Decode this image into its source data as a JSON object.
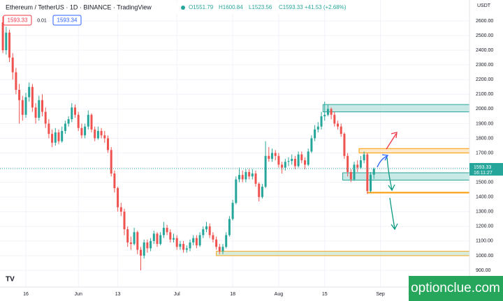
{
  "header": {
    "title": "Ethereum / TetherUS · 1D · BINANCE · TradingView",
    "ohlc": [
      "O1551.79",
      "H1600.84",
      "L1523.56",
      "C1593.33 +41.53 (+2.68%)"
    ],
    "sell_price": "1593.33",
    "spread": "0.01",
    "buy_price": "1593.34"
  },
  "watermark": "optionclue.com",
  "chart_data": {
    "type": "candlestick",
    "y_axis_label": "USDT",
    "up_color": "#26a69a",
    "down_color": "#ef5350",
    "grid": true,
    "price_label": "1593.33",
    "countdown": "16:11:27",
    "x": [
      -7,
      -6,
      -5,
      -4,
      -3,
      -2,
      -1,
      0,
      1,
      2,
      3,
      4,
      5,
      6,
      7,
      8,
      9,
      10,
      11,
      12,
      13,
      14,
      15,
      16,
      17,
      18,
      19,
      20,
      21,
      22,
      23,
      24,
      25,
      26,
      27,
      28,
      29,
      30,
      31,
      32,
      33,
      34,
      35,
      36,
      37,
      38,
      39,
      40,
      41,
      42,
      43,
      44,
      45,
      46,
      47,
      48,
      49,
      50,
      51,
      52,
      53,
      54,
      55,
      56,
      57,
      58,
      59,
      60,
      61,
      62,
      63,
      64,
      65,
      66,
      67,
      68,
      69,
      70,
      71,
      72,
      73,
      74,
      75,
      76,
      77,
      78,
      79,
      80,
      81,
      82,
      83,
      84,
      85,
      86,
      87,
      88,
      89,
      90,
      91,
      92,
      93,
      94,
      95,
      96,
      97,
      98,
      99,
      100,
      101,
      102,
      103,
      104,
      105,
      106
    ],
    "open": [
      2590,
      2400,
      2520,
      2350,
      2250,
      2130,
      2060,
      1960,
      2080,
      2150,
      2010,
      1940,
      2060,
      1980,
      1900,
      1830,
      1770,
      1840,
      1780,
      1850,
      1900,
      1930,
      2010,
      1960,
      1870,
      1820,
      1880,
      1960,
      1860,
      1800,
      1850,
      1820,
      1800,
      1720,
      1560,
      1460,
      1330,
      1300,
      1180,
      1090,
      1080,
      1160,
      1040,
      1000,
      1090,
      1050,
      1100,
      1150,
      1080,
      1140,
      1190,
      1160,
      1110,
      1120,
      1060,
      1080,
      1040,
      1050,
      1090,
      1120,
      1070,
      1140,
      1180,
      1200,
      1140,
      1110,
      1060,
      1030,
      1060,
      1140,
      1250,
      1360,
      1520,
      1550,
      1520,
      1570,
      1540,
      1560,
      1490,
      1400,
      1470,
      1680,
      1660,
      1700,
      1680,
      1620,
      1600,
      1640,
      1645,
      1660,
      1610,
      1690,
      1650,
      1620,
      1710,
      1800,
      1860,
      1880,
      1950,
      1960,
      2000,
      1960,
      1900,
      1880,
      1830,
      1680,
      1570,
      1520,
      1620,
      1600,
      1650,
      1690,
      1440,
      1551.79
    ],
    "high": [
      2630,
      2560,
      2540,
      2380,
      2280,
      2170,
      2090,
      2110,
      2180,
      2170,
      2040,
      2090,
      2100,
      2010,
      1930,
      1860,
      1870,
      1860,
      1880,
      1920,
      1950,
      2040,
      2030,
      1980,
      1900,
      1900,
      1990,
      1970,
      1880,
      1880,
      1870,
      1850,
      1820,
      1740,
      1580,
      1470,
      1360,
      1320,
      1200,
      1130,
      1190,
      1170,
      1060,
      1110,
      1110,
      1120,
      1170,
      1160,
      1160,
      1230,
      1210,
      1180,
      1150,
      1140,
      1100,
      1100,
      1070,
      1110,
      1140,
      1140,
      1160,
      1200,
      1230,
      1220,
      1160,
      1130,
      1080,
      1080,
      1160,
      1270,
      1380,
      1540,
      1600,
      1580,
      1590,
      1590,
      1590,
      1580,
      1500,
      1490,
      1780,
      1740,
      1730,
      1720,
      1700,
      1640,
      1660,
      1670,
      1690,
      1680,
      1710,
      1710,
      1670,
      1730,
      1820,
      1890,
      1910,
      1980,
      2050,
      2030,
      2010,
      1980,
      1920,
      1900,
      1840,
      1700,
      1590,
      1640,
      1650,
      1680,
      1710,
      1700,
      1570,
      1600.84
    ],
    "low": [
      2380,
      2370,
      2320,
      2200,
      2100,
      1900,
      1920,
      1940,
      2050,
      1980,
      1900,
      1920,
      1950,
      1870,
      1800,
      1740,
      1750,
      1760,
      1770,
      1830,
      1880,
      1910,
      1940,
      1850,
      1800,
      1800,
      1860,
      1840,
      1780,
      1790,
      1800,
      1770,
      1700,
      1540,
      1430,
      1300,
      1270,
      1140,
      1060,
      1040,
      1070,
      1010,
      900,
      980,
      1020,
      1030,
      1080,
      1060,
      1070,
      1120,
      1140,
      1090,
      1090,
      1040,
      1040,
      1020,
      1020,
      1030,
      1070,
      1050,
      1060,
      1120,
      1160,
      1120,
      1090,
      1040,
      1010,
      1010,
      1050,
      1130,
      1240,
      1350,
      1500,
      1500,
      1500,
      1520,
      1520,
      1470,
      1370,
      1390,
      1460,
      1640,
      1640,
      1650,
      1600,
      1560,
      1580,
      1610,
      1620,
      1590,
      1600,
      1630,
      1590,
      1610,
      1700,
      1780,
      1840,
      1860,
      1920,
      1950,
      1930,
      1880,
      1860,
      1810,
      1660,
      1540,
      1500,
      1510,
      1570,
      1590,
      1630,
      1420,
      1430,
      1523.56
    ],
    "close": [
      2400,
      2520,
      2350,
      2250,
      2130,
      2060,
      1960,
      2080,
      2150,
      2010,
      1940,
      2060,
      1980,
      1900,
      1830,
      1770,
      1840,
      1780,
      1850,
      1900,
      1930,
      2010,
      1960,
      1870,
      1820,
      1880,
      1960,
      1860,
      1800,
      1850,
      1820,
      1800,
      1720,
      1560,
      1460,
      1330,
      1300,
      1180,
      1090,
      1080,
      1160,
      1040,
      1000,
      1090,
      1050,
      1100,
      1150,
      1080,
      1140,
      1190,
      1160,
      1110,
      1120,
      1060,
      1080,
      1040,
      1050,
      1090,
      1120,
      1070,
      1140,
      1180,
      1200,
      1140,
      1110,
      1060,
      1030,
      1060,
      1140,
      1250,
      1360,
      1520,
      1550,
      1520,
      1570,
      1540,
      1560,
      1490,
      1400,
      1470,
      1680,
      1660,
      1700,
      1680,
      1620,
      1600,
      1640,
      1645,
      1660,
      1610,
      1690,
      1650,
      1620,
      1710,
      1800,
      1860,
      1880,
      1950,
      1960,
      2000,
      1960,
      1900,
      1880,
      1830,
      1680,
      1570,
      1520,
      1620,
      1600,
      1650,
      1690,
      1440,
      1551.79,
      1593.33
    ],
    "zones": [
      {
        "ylim": [
          1980,
          2030
        ],
        "x_start": 90.5,
        "fill": "#b2dfdb",
        "stroke": "#26a69a"
      },
      {
        "ylim": [
          1700,
          1730
        ],
        "x_start": 101.5,
        "fill": "#ffe0b2",
        "stroke": "#ff9800"
      },
      {
        "ylim": [
          1515,
          1565
        ],
        "x_start": 96.5,
        "fill": "#b2dfdb",
        "stroke": "#26a69a"
      },
      {
        "ylim": [
          1428,
          1432
        ],
        "x_start": 104,
        "fill": "#ffe0b2",
        "stroke": "#ff9800"
      },
      {
        "ylim": [
          1000,
          1030
        ],
        "x_start": 58,
        "fill": "#c8e6c9",
        "stroke": "#f5a623"
      }
    ],
    "xlim": [
      -7.87,
      135.1
    ],
    "xticks": [
      {
        "value": 0,
        "label": "16"
      },
      {
        "value": 16,
        "label": "Jun"
      },
      {
        "value": 28,
        "label": "13"
      },
      {
        "value": 46,
        "label": "Jul"
      },
      {
        "value": 63,
        "label": "18"
      },
      {
        "value": 77,
        "label": "Aug"
      },
      {
        "value": 91,
        "label": "15"
      },
      {
        "value": 108,
        "label": "Sep"
      }
    ],
    "ylim": [
      786,
      2742.5
    ],
    "yticks": [
      {
        "value": 900,
        "label": "900.00"
      },
      {
        "value": 1000,
        "label": "1000.00"
      },
      {
        "value": 1100,
        "label": "1100.00"
      },
      {
        "value": 1200,
        "label": "1200.00"
      },
      {
        "value": 1300,
        "label": "1300.00"
      },
      {
        "value": 1400,
        "label": "1400.00"
      },
      {
        "value": 1500,
        "label": "1500.00"
      },
      {
        "value": 1600,
        "label": "1600.00"
      },
      {
        "value": 1700,
        "label": "1700.00"
      },
      {
        "value": 1800,
        "label": "1800.00"
      },
      {
        "value": 1900,
        "label": "1900.00"
      },
      {
        "value": 2000,
        "label": "2000.00"
      },
      {
        "value": 2100,
        "label": "2100.00"
      },
      {
        "value": 2200,
        "label": "2200.00"
      },
      {
        "value": 2300,
        "label": "2300.00"
      },
      {
        "value": 2400,
        "label": "2400.00"
      },
      {
        "value": 2500,
        "label": "2500.00"
      },
      {
        "value": 2600,
        "label": "2600.00"
      }
    ]
  }
}
